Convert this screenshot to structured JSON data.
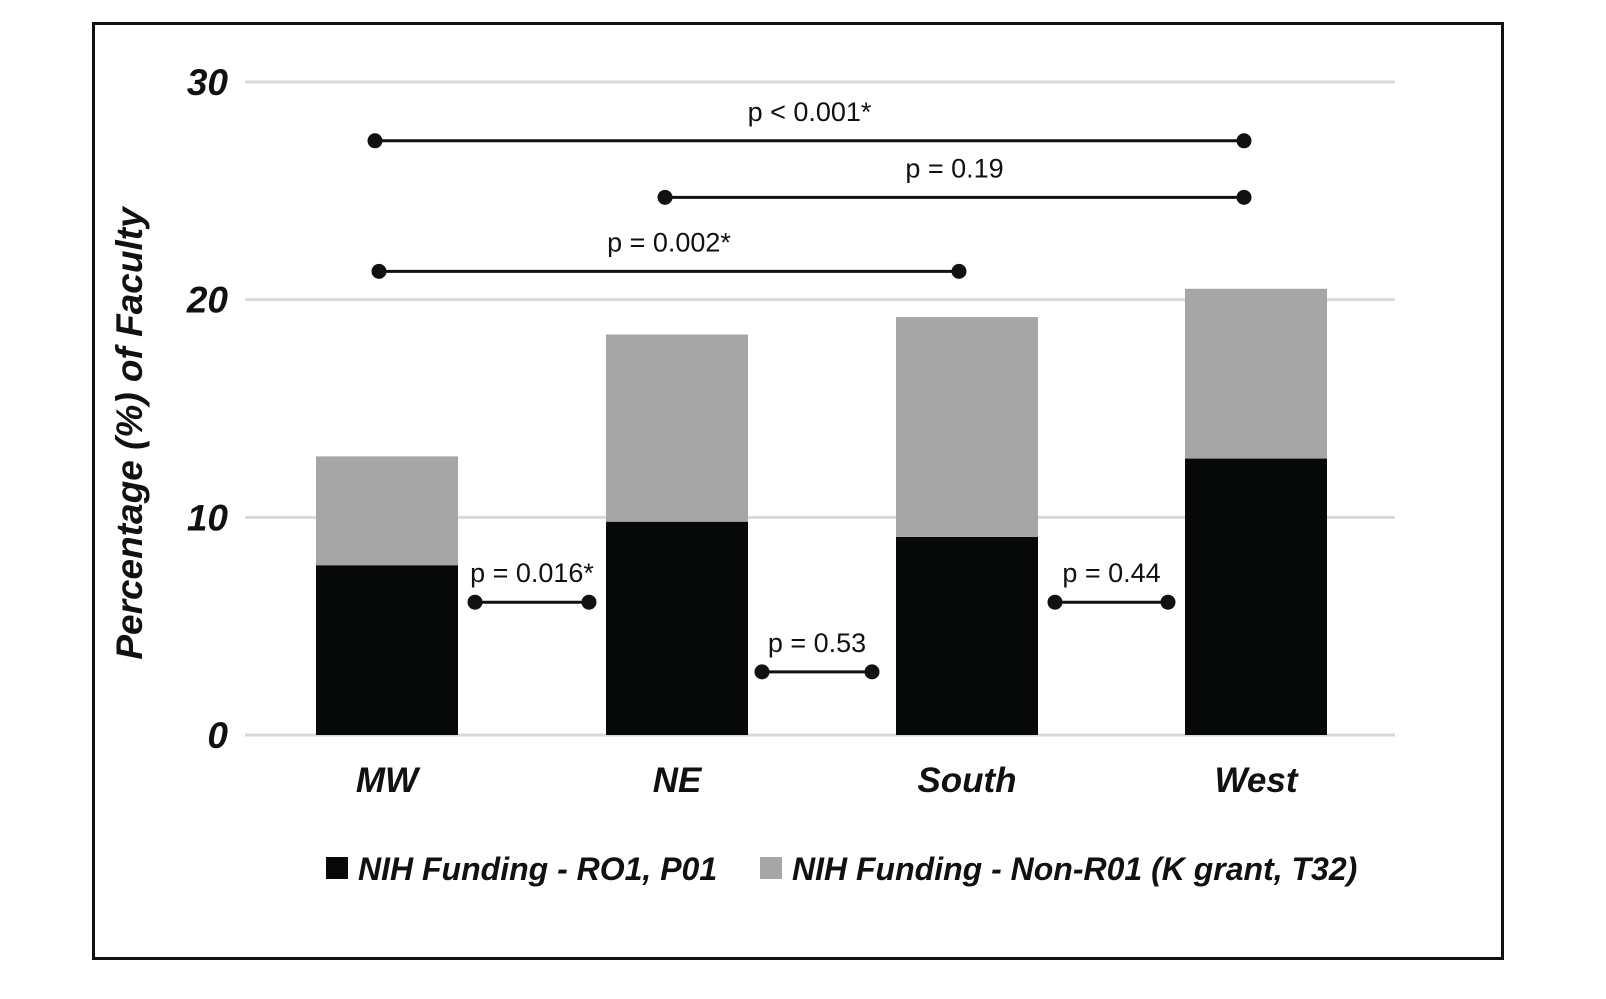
{
  "chart_data": {
    "type": "bar",
    "stacked": true,
    "categories": [
      "MW",
      "NE",
      "South",
      "West"
    ],
    "series": [
      {
        "name": "NIH Funding - RO1, P01",
        "values": [
          7.8,
          9.8,
          9.1,
          12.7
        ],
        "color": "#070909"
      },
      {
        "name": "NIH Funding - Non-R01 (K grant, T32)",
        "values": [
          5.0,
          8.6,
          10.1,
          7.8
        ],
        "color": "#a6a6a6"
      }
    ],
    "title": "",
    "xlabel": "",
    "ylabel": "Percentage (%) of Faculty",
    "ylim": [
      0,
      30
    ],
    "yticks": [
      0,
      10,
      20,
      30
    ],
    "ytick_labels": [
      "0",
      "10",
      "20",
      "30"
    ],
    "grid": true,
    "gridline_color": "#d9d9d9",
    "legend_position": "bottom",
    "annotations": [
      {
        "from": "MW",
        "to": "West",
        "label": "p < 0.001*",
        "level": 27.3
      },
      {
        "from": "NE",
        "to": "West",
        "label": "p = 0.19",
        "level": 24.7
      },
      {
        "from": "MW",
        "to": "South",
        "label": "p = 0.002*",
        "level": 21.3
      },
      {
        "from": "MW",
        "to": "NE",
        "label": "p = 0.016*",
        "level": 6.1
      },
      {
        "from": "NE",
        "to": "South",
        "label": "p = 0.53",
        "level": 2.9
      },
      {
        "from": "South",
        "to": "West",
        "label": "p = 0.44",
        "level": 6.1
      }
    ]
  }
}
